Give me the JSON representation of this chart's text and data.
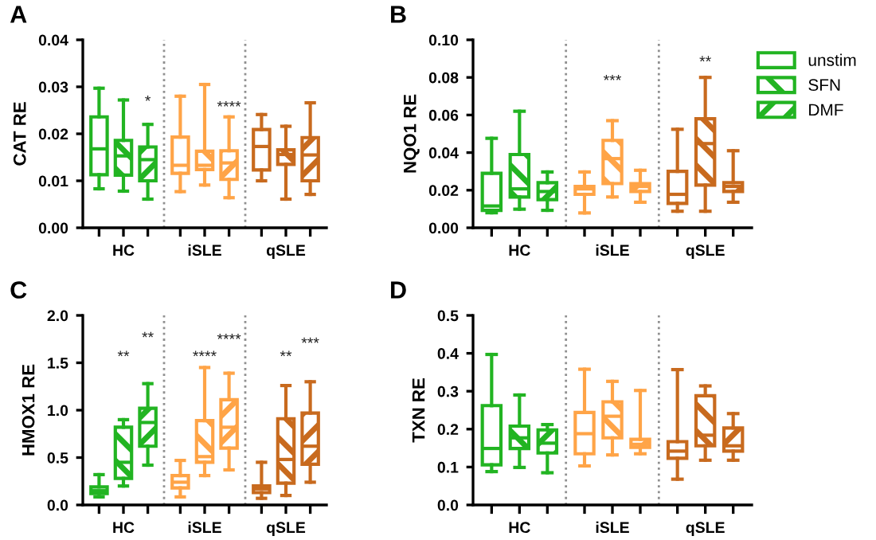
{
  "chart_data": [
    {
      "type": "box",
      "title": "A",
      "ylabel": "CAT RE",
      "categories": [
        "HC",
        "iSLE",
        "qSLE"
      ],
      "ylim": [
        0,
        0.04
      ],
      "yticks": [
        {
          "value": 0,
          "label": "0.00"
        },
        0.01,
        0.02,
        0.03,
        0.04
      ],
      "legend": "top right",
      "annotations": [
        "*",
        "****"
      ],
      "series": [
        {
          "name": "unstim",
          "color": "#22b422",
          "colors": [
            "#22b422",
            "#ffa447",
            "#c86a1e"
          ],
          "boxes": [
            {
              "low": 0.0083,
              "q1": 0.0113,
              "median": 0.0168,
              "q3": 0.0236,
              "high": 0.0297
            },
            {
              "low": 0.0077,
              "q1": 0.0116,
              "median": 0.0133,
              "q3": 0.0193,
              "high": 0.028
            },
            {
              "low": 0.01,
              "q1": 0.0123,
              "median": 0.0173,
              "q3": 0.0209,
              "high": 0.0241
            }
          ]
        },
        {
          "name": "SFN",
          "color": "#22b422",
          "colors": [
            "#22b422",
            "#ffa447",
            "#c86a1e"
          ],
          "boxes": [
            {
              "low": 0.0078,
              "q1": 0.0112,
              "median": 0.0153,
              "q3": 0.0186,
              "high": 0.0272
            },
            {
              "low": 0.0091,
              "q1": 0.0124,
              "median": 0.0133,
              "q3": 0.0163,
              "high": 0.0305
            },
            {
              "low": 0.0061,
              "q1": 0.0135,
              "median": 0.0156,
              "q3": 0.0166,
              "high": 0.0216
            }
          ]
        },
        {
          "name": "DMF",
          "color": "#22b422",
          "colors": [
            "#22b422",
            "#ffa447",
            "#c86a1e"
          ],
          "boxes": [
            {
              "low": 0.0061,
              "q1": 0.01,
              "median": 0.0145,
              "q3": 0.0172,
              "high": 0.022
            },
            {
              "low": 0.0064,
              "q1": 0.0103,
              "median": 0.0138,
              "q3": 0.0164,
              "high": 0.0236
            },
            {
              "low": 0.0071,
              "q1": 0.01,
              "median": 0.0155,
              "q3": 0.0192,
              "high": 0.0266
            }
          ]
        }
      ]
    },
    {
      "type": "box",
      "title": "B",
      "ylabel": "NQO1 RE",
      "categories": [
        "HC",
        "iSLE",
        "qSLE"
      ],
      "ylim": [
        0,
        0.1
      ],
      "yticks": [
        {
          "value": 0,
          "label": "0.00"
        },
        0.02,
        0.04,
        0.06,
        0.08,
        {
          "value": 0.1,
          "label": "0.10"
        }
      ],
      "annotations": [
        "***",
        "**"
      ],
      "series": [
        {
          "colors": [
            "#22b422",
            "#ffa447",
            "#c86a1e"
          ],
          "boxes": [
            {
              "low": 0.008,
              "q1": 0.0093,
              "median": 0.0116,
              "q3": 0.029,
              "high": 0.0476
            },
            {
              "low": 0.0079,
              "q1": 0.0178,
              "median": 0.0207,
              "q3": 0.022,
              "high": 0.0297
            },
            {
              "low": 0.0088,
              "q1": 0.013,
              "median": 0.0178,
              "q3": 0.03,
              "high": 0.0524
            }
          ]
        },
        {
          "colors": [
            "#22b422",
            "#ffa447",
            "#c86a1e"
          ],
          "boxes": [
            {
              "low": 0.0099,
              "q1": 0.0164,
              "median": 0.0207,
              "q3": 0.039,
              "high": 0.062
            },
            {
              "low": 0.0164,
              "q1": 0.0235,
              "median": 0.0368,
              "q3": 0.0465,
              "high": 0.057
            },
            {
              "low": 0.0088,
              "q1": 0.0227,
              "median": 0.0448,
              "q3": 0.058,
              "high": 0.08
            }
          ]
        },
        {
          "colors": [
            "#22b422",
            "#ffa447",
            "#c86a1e"
          ],
          "boxes": [
            {
              "low": 0.0093,
              "q1": 0.015,
              "median": 0.0193,
              "q3": 0.024,
              "high": 0.0297
            },
            {
              "low": 0.0136,
              "q1": 0.0193,
              "median": 0.022,
              "q3": 0.0235,
              "high": 0.0306
            },
            {
              "low": 0.0136,
              "q1": 0.0193,
              "median": 0.022,
              "q3": 0.024,
              "high": 0.041
            }
          ]
        }
      ]
    },
    {
      "type": "box",
      "title": "C",
      "ylabel": "HMOX1 RE",
      "categories": [
        "HC",
        "iSLE",
        "qSLE"
      ],
      "ylim": [
        0,
        2
      ],
      "yticks": [
        {
          "value": 0,
          "label": "0.0"
        },
        0.5,
        {
          "value": 1,
          "label": "1.0"
        },
        1.5,
        {
          "value": 2,
          "label": "2.0"
        }
      ],
      "annotations": [
        "**",
        "**",
        "****",
        "****",
        "**",
        "***"
      ],
      "series": [
        {
          "colors": [
            "#22b422",
            "#ffa447",
            "#c86a1e"
          ],
          "boxes": [
            {
              "low": 0.085,
              "q1": 0.12,
              "median": 0.15,
              "q3": 0.19,
              "high": 0.32
            },
            {
              "low": 0.085,
              "q1": 0.18,
              "median": 0.24,
              "q3": 0.31,
              "high": 0.47
            },
            {
              "low": 0.07,
              "q1": 0.13,
              "median": 0.17,
              "q3": 0.2,
              "high": 0.45
            }
          ]
        },
        {
          "colors": [
            "#22b422",
            "#ffa447",
            "#c86a1e"
          ],
          "boxes": [
            {
              "low": 0.2,
              "q1": 0.28,
              "median": 0.45,
              "q3": 0.82,
              "high": 0.9
            },
            {
              "low": 0.31,
              "q1": 0.45,
              "median": 0.51,
              "q3": 0.89,
              "high": 1.45
            },
            {
              "low": 0.1,
              "q1": 0.23,
              "median": 0.48,
              "q3": 0.91,
              "high": 1.26
            }
          ]
        },
        {
          "colors": [
            "#22b422",
            "#ffa447",
            "#c86a1e"
          ],
          "boxes": [
            {
              "low": 0.42,
              "q1": 0.62,
              "median": 0.87,
              "q3": 1.02,
              "high": 1.28
            },
            {
              "low": 0.37,
              "q1": 0.6,
              "median": 0.82,
              "q3": 1.11,
              "high": 1.39
            },
            {
              "low": 0.24,
              "q1": 0.43,
              "median": 0.62,
              "q3": 0.97,
              "high": 1.3
            }
          ]
        }
      ]
    },
    {
      "type": "box",
      "title": "D",
      "ylabel": "TXN RE",
      "categories": [
        "HC",
        "iSLE",
        "qSLE"
      ],
      "ylim": [
        0,
        0.5
      ],
      "yticks": [
        {
          "value": 0,
          "label": "0.0"
        },
        0.1,
        0.2,
        0.3,
        0.4,
        0.5
      ],
      "series": [
        {
          "colors": [
            "#22b422",
            "#ffa447",
            "#c86a1e"
          ],
          "boxes": [
            {
              "low": 0.088,
              "q1": 0.106,
              "median": 0.149,
              "q3": 0.262,
              "high": 0.397
            },
            {
              "low": 0.103,
              "q1": 0.135,
              "median": 0.188,
              "q3": 0.244,
              "high": 0.358
            },
            {
              "low": 0.068,
              "q1": 0.123,
              "median": 0.142,
              "q3": 0.167,
              "high": 0.357
            }
          ]
        },
        {
          "colors": [
            "#22b422",
            "#ffa447",
            "#c86a1e"
          ],
          "boxes": [
            {
              "low": 0.099,
              "q1": 0.149,
              "median": 0.177,
              "q3": 0.208,
              "high": 0.29
            },
            {
              "low": 0.132,
              "q1": 0.177,
              "median": 0.234,
              "q3": 0.272,
              "high": 0.326
            },
            {
              "low": 0.118,
              "q1": 0.156,
              "median": 0.184,
              "q3": 0.288,
              "high": 0.314
            }
          ]
        },
        {
          "colors": [
            "#22b422",
            "#ffa447",
            "#c86a1e"
          ],
          "boxes": [
            {
              "low": 0.085,
              "q1": 0.137,
              "median": 0.163,
              "q3": 0.198,
              "high": 0.212
            },
            {
              "low": 0.135,
              "q1": 0.152,
              "median": 0.16,
              "q3": 0.173,
              "high": 0.302
            },
            {
              "low": 0.118,
              "q1": 0.142,
              "median": 0.156,
              "q3": 0.203,
              "high": 0.241
            }
          ]
        }
      ]
    }
  ]
}
